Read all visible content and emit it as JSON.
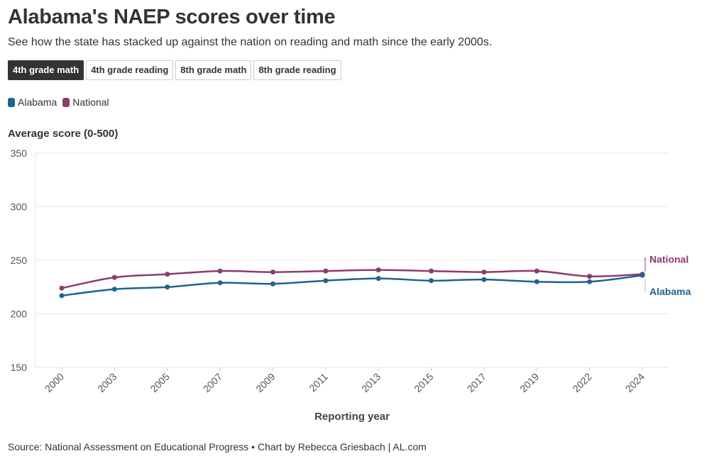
{
  "header": {
    "title": "Alabama's NAEP scores over time",
    "subtitle": "See how the state has stacked up against the nation on reading and math since the early 2000s."
  },
  "tabs": [
    {
      "label": "4th grade math",
      "active": true
    },
    {
      "label": "4th grade reading",
      "active": false
    },
    {
      "label": "8th grade math",
      "active": false
    },
    {
      "label": "8th grade reading",
      "active": false
    }
  ],
  "legend": [
    {
      "label": "Alabama",
      "color": "#1f6390"
    },
    {
      "label": "National",
      "color": "#8e3b6e"
    }
  ],
  "chart_data": {
    "type": "line",
    "ylabel": "Average score (0-500)",
    "xlabel": "Reporting year",
    "categories": [
      "2000",
      "2003",
      "2005",
      "2007",
      "2009",
      "2011",
      "2013",
      "2015",
      "2017",
      "2019",
      "2022",
      "2024"
    ],
    "ylim": [
      150,
      350
    ],
    "yticks": [
      150,
      200,
      250,
      300,
      350
    ],
    "grid": true,
    "series": [
      {
        "name": "Alabama",
        "color": "#1f6390",
        "values": [
          217,
          223,
          225,
          229,
          228,
          231,
          233,
          231,
          232,
          230,
          230,
          236
        ]
      },
      {
        "name": "National",
        "color": "#8e3b6e",
        "values": [
          224,
          234,
          237,
          240,
          239,
          240,
          241,
          240,
          239,
          240,
          235,
          237
        ]
      }
    ]
  },
  "footer": {
    "source": "Source: National Assessment on Educational Progress • Chart by Rebecca Griesbach | AL.com"
  }
}
